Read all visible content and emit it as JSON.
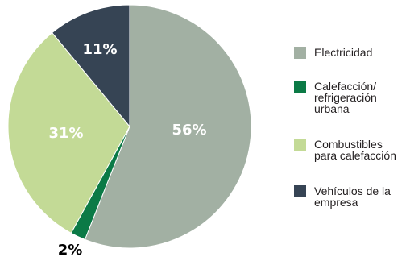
{
  "chart_data": {
    "type": "pie",
    "slices": [
      {
        "label": "Electricidad",
        "value": 56,
        "display": "56%",
        "color": "#a2b0a3",
        "label_color": "#ffffff"
      },
      {
        "label": "Calefacción/\nrefrigeración\nurbana",
        "value": 2,
        "display": "2%",
        "color": "#0b7a46",
        "label_color": "#000000"
      },
      {
        "label": "Combustibles\npara calefacción",
        "value": 31,
        "display": "31%",
        "color": "#c3da96",
        "label_color": "#ffffff"
      },
      {
        "label": "Vehículos de la\nempresa",
        "value": 11,
        "display": "11%",
        "color": "#364454",
        "label_color": "#ffffff"
      }
    ],
    "start_angle": "12 o'clock",
    "direction": "clockwise",
    "legend_position": "right"
  }
}
